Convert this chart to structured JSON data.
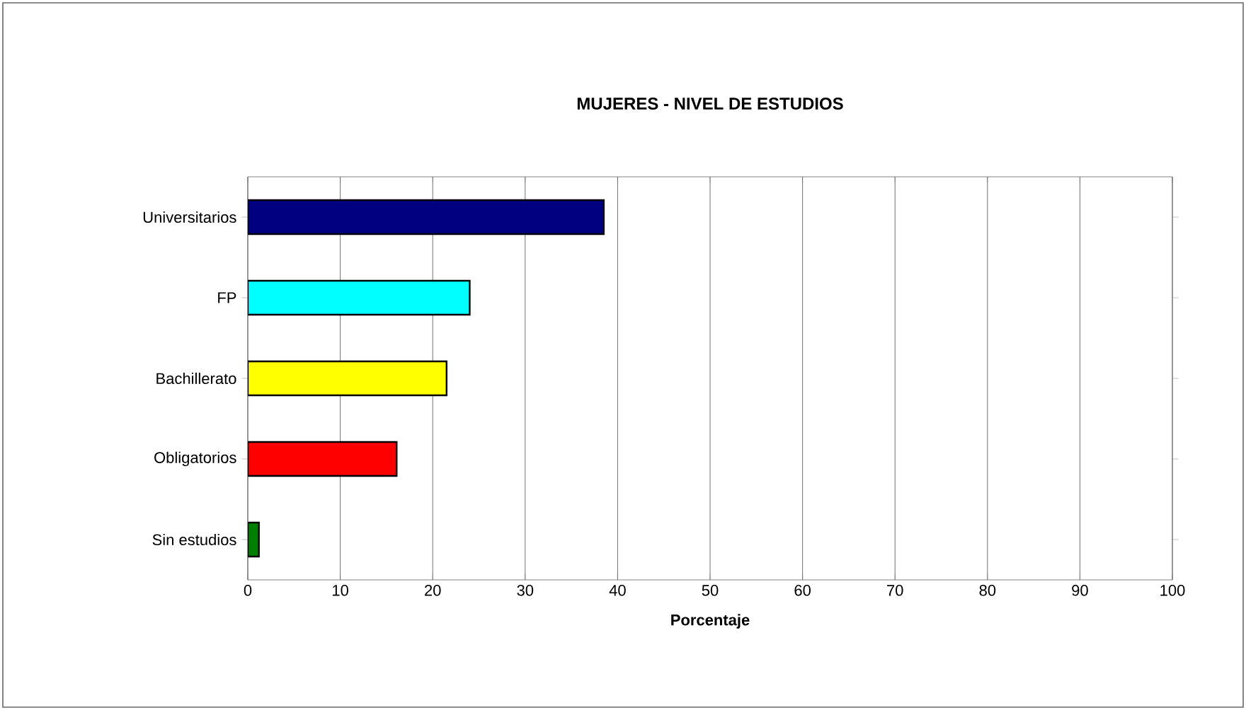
{
  "chart_data": {
    "type": "bar",
    "orientation": "horizontal",
    "title": "MUJERES - NIVEL DE ESTUDIOS",
    "xlabel": "Porcentaje",
    "categories": [
      "Universitarios",
      "FP",
      "Bachillerato",
      "Obligatorios",
      "Sin estudios"
    ],
    "values": [
      38.5,
      24.0,
      21.5,
      16.1,
      1.2
    ],
    "colors": [
      "#000080",
      "#00ffff",
      "#ffff00",
      "#ff0000",
      "#008000"
    ],
    "xlim": [
      0,
      100
    ],
    "xticks": [
      0,
      10,
      20,
      30,
      40,
      50,
      60,
      70,
      80,
      90,
      100
    ],
    "grid": "x"
  }
}
